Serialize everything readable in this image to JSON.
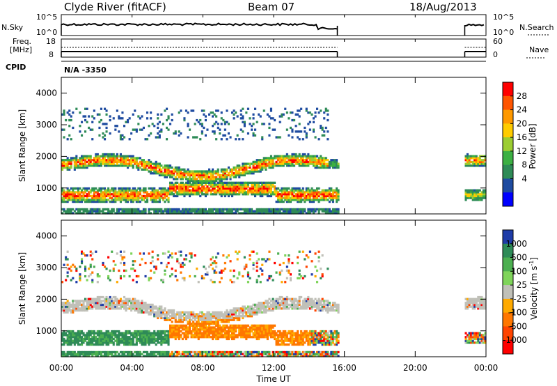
{
  "header": {
    "station": "Clyde River (fitACF)",
    "beam": "Beam 07",
    "date": "18/Aug/2013"
  },
  "top_panels": {
    "nsky_label": "N.Sky",
    "nsky_ticks": [
      "10^5",
      "10^0"
    ],
    "nsearch_label": "N.Search",
    "nsearch_ticks": [
      "10^5",
      "10^0"
    ],
    "freq_label_line1": "Freq.",
    "freq_label_line2": "[MHz]",
    "freq_ticks": [
      "18",
      "8"
    ],
    "nave_label": "Nave",
    "nave_ticks": [
      "60",
      "0"
    ],
    "cpid_label": "CPID",
    "cpid_value": "N/A -3350"
  },
  "x_axis": {
    "label": "Time UT",
    "ticks": [
      "00:00",
      "04:00",
      "08:00",
      "12:00",
      "16:00",
      "20:00",
      "00:00"
    ],
    "hours": [
      0,
      4,
      8,
      12,
      16,
      20,
      24
    ]
  },
  "chart_data": [
    {
      "type": "heatmap",
      "title": "",
      "xlabel": "Time UT",
      "ylabel": "Slant Range [km]",
      "x_range_hours": [
        0,
        24
      ],
      "ylim": [
        180,
        4500
      ],
      "yticks": [
        1000,
        2000,
        3000,
        4000
      ],
      "colorbar": {
        "label": "Power [dB]",
        "ticks": [
          "28",
          "24",
          "20",
          "16",
          "12",
          "8",
          "4"
        ],
        "colors": [
          "#ff0000",
          "#ff5500",
          "#ff9900",
          "#ffcc00",
          "#9ccd32",
          "#3cb043",
          "#2e8b57",
          "#1e4ba0",
          "#0000ff"
        ]
      },
      "data_gaps_hours": [
        [
          15.6,
          22.8
        ]
      ],
      "features": [
        {
          "name": "strong echo band",
          "range_km": [
            600,
            1000
          ],
          "hours": [
            0,
            15.5
          ],
          "level_dB": 28
        },
        {
          "name": "main echo band",
          "range_km": [
            1500,
            2000
          ],
          "hours": [
            0,
            15.5
          ],
          "level_dB": 20
        },
        {
          "name": "weak scatter",
          "range_km": [
            2500,
            3500
          ],
          "hours": [
            0,
            15.0
          ],
          "level_dB": 6
        }
      ]
    },
    {
      "type": "heatmap",
      "title": "",
      "xlabel": "Time UT",
      "ylabel": "Slant Range [km]",
      "x_range_hours": [
        0,
        24
      ],
      "ylim": [
        180,
        4500
      ],
      "yticks": [
        1000,
        2000,
        3000,
        4000
      ],
      "colorbar": {
        "label": "Velocity [m s^-1]",
        "ticks": [
          "1000",
          "500",
          "100",
          "25",
          "-25",
          "-100",
          "-500",
          "-1000"
        ],
        "colors": [
          "#1e3ca8",
          "#2e8b57",
          "#4caf50",
          "#7fd45a",
          "#c0c0b8",
          "#ffaa00",
          "#ff7700",
          "#ff4400",
          "#ff0000"
        ]
      },
      "data_gaps_hours": [
        [
          15.6,
          22.8
        ]
      ],
      "features": [
        {
          "name": "positive velocity band",
          "range_km": [
            500,
            1200
          ],
          "hours": [
            0,
            6
          ],
          "velocity": 300
        },
        {
          "name": "ground scatter band",
          "range_km": [
            1500,
            2000
          ],
          "hours": [
            0,
            15.5
          ],
          "velocity": 0
        },
        {
          "name": "negative velocity region",
          "range_km": [
            600,
            1500
          ],
          "hours": [
            6,
            14
          ],
          "velocity": -300
        }
      ]
    }
  ]
}
